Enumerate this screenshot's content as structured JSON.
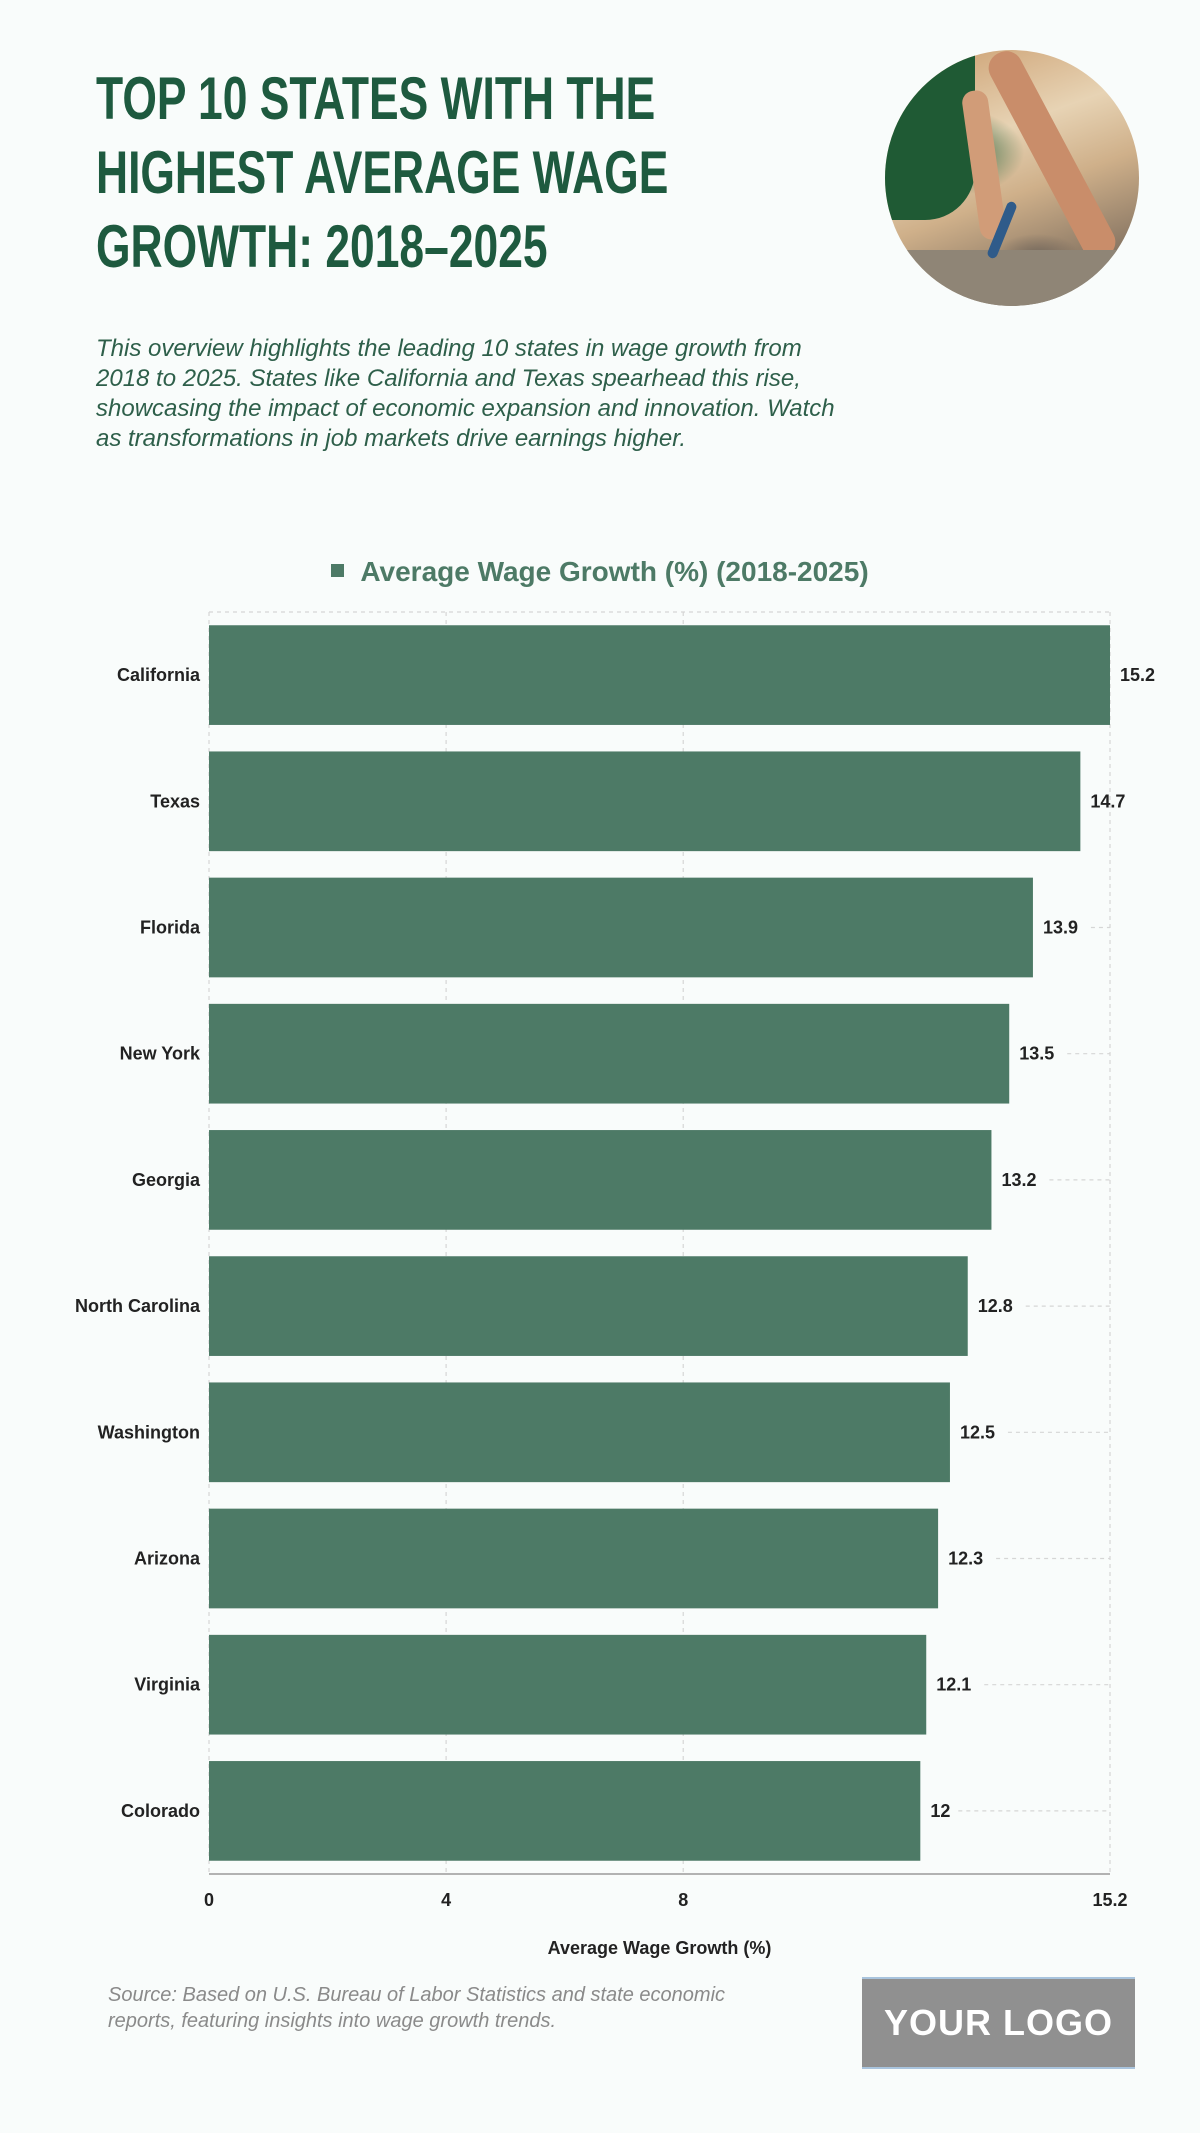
{
  "header": {
    "title": "TOP 10 STATES WITH THE\nHIGHEST AVERAGE WAGE\nGROWTH: 2018–2025",
    "description": "This overview highlights the leading 10 states in wage growth from 2018 to 2025. States like California and Texas spearhead this rise, showcasing the impact of economic expansion and innovation. Watch as transformations in job markets drive earnings higher.",
    "photo_icon": "construction-worker-photo"
  },
  "chart_data": {
    "type": "bar",
    "orientation": "horizontal",
    "title": "",
    "legend": [
      "Average Wage Growth (%) (2018-2025)"
    ],
    "legend_position": "top-center",
    "categories": [
      "California",
      "Texas",
      "Florida",
      "New York",
      "Georgia",
      "North Carolina",
      "Washington",
      "Arizona",
      "Virginia",
      "Colorado"
    ],
    "series": [
      {
        "name": "Average Wage Growth (%) (2018-2025)",
        "values": [
          15.2,
          14.7,
          13.9,
          13.5,
          13.2,
          12.8,
          12.5,
          12.3,
          12.1,
          12
        ],
        "value_labels": [
          "15.2",
          "14.7",
          "13.9",
          "13.5",
          "13.2",
          "12.8",
          "12.5",
          "12.3",
          "12.1",
          "12"
        ]
      }
    ],
    "xlabel": "Average Wage Growth (%)",
    "ylabel": "",
    "xlim": [
      0,
      15.2
    ],
    "x_ticks": [
      0,
      4,
      8,
      15.2
    ],
    "x_tick_labels": [
      "0",
      "4",
      "8",
      "15.2"
    ],
    "grid": true,
    "bar_color": "#4d7a66"
  },
  "footer": {
    "source": "Source: Based on U.S. Bureau of Labor Statistics and state economic reports, featuring insights into wage growth trends.",
    "logo_text": "YOUR LOGO"
  },
  "colors": {
    "title": "#1e5a3f",
    "description": "#2e5f4a",
    "bar": "#4d7a66",
    "background": "#f9fcfb"
  }
}
